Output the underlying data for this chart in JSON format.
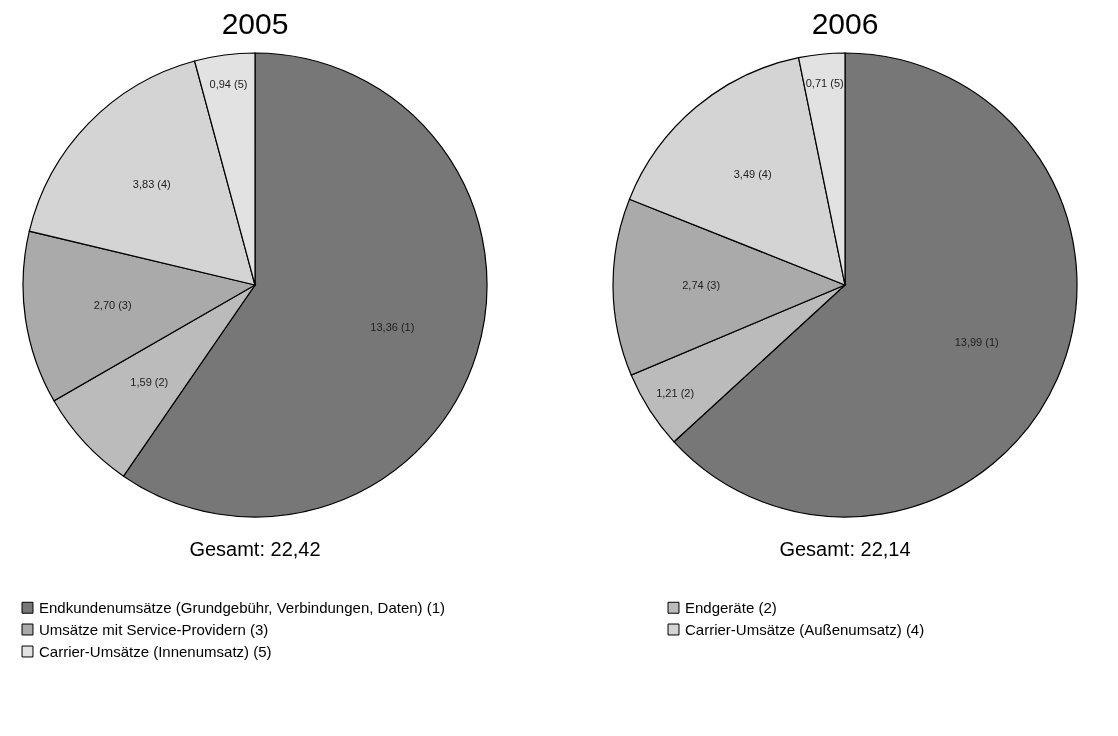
{
  "chart_data": [
    {
      "type": "pie",
      "title": "2005",
      "categories": [
        "Endkundenumsätze (Grundgebühr, Verbindungen, Daten) (1)",
        "Endgeräte (2)",
        "Umsätze mit Service-Providern (3)",
        "Carrier-Umsätze (Außenumsatz) (4)",
        "Carrier-Umsätze (Innenumsatz) (5)"
      ],
      "values": [
        13.36,
        1.59,
        2.7,
        3.83,
        0.94
      ],
      "value_labels": [
        "13,36 (1)",
        "1,59 (2)",
        "2,70 (3)",
        "3,83 (4)",
        "0,94 (5)"
      ],
      "colors": [
        "#777777",
        "#bbbbbb",
        "#aaaaaa",
        "#d4d4d4",
        "#e2e2e2"
      ],
      "annotations": [
        "Gesamt: 22,42"
      ],
      "legend": "bottom"
    },
    {
      "type": "pie",
      "title": "2006",
      "categories": [
        null,
        null,
        null,
        null,
        null
      ],
      "values": [
        13.99,
        1.21,
        2.74,
        3.49,
        0.71
      ],
      "value_labels": [
        "13,99 (1)",
        "1,21 (2)",
        "2,74 (3)",
        "3,49 (4)",
        "0,71 (5)"
      ],
      "colors": [
        "#777777",
        "#bbbbbb",
        "#aaaaaa",
        "#d4d4d4",
        "#e2e2e2"
      ],
      "annotations": [
        "Gesamt: 22,14"
      ],
      "legend": false
    }
  ]
}
